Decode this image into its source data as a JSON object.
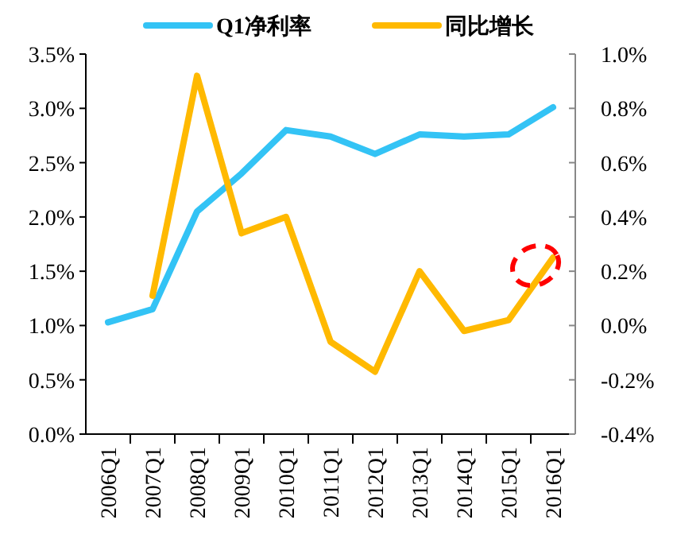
{
  "chart_data": {
    "type": "line",
    "categories": [
      "2006Q1",
      "2007Q1",
      "2008Q1",
      "2009Q1",
      "2010Q1",
      "2011Q1",
      "2012Q1",
      "2013Q1",
      "2014Q1",
      "2015Q1",
      "2016Q1"
    ],
    "series": [
      {
        "name": "Q1净利率",
        "color": "#33c3f5",
        "values": [
          1.03,
          1.15,
          2.05,
          2.4,
          2.8,
          2.74,
          2.58,
          2.76,
          2.74,
          2.76,
          3.01
        ]
      },
      {
        "name": "同比增长",
        "color": "#ffb900",
        "axis": "y2",
        "values": [
          null,
          0.11,
          0.92,
          0.34,
          0.4,
          -0.06,
          -0.17,
          0.2,
          -0.02,
          0.02,
          0.25
        ]
      }
    ],
    "ylim": [
      0,
      3.5
    ],
    "yticks": [
      {
        "value": 0,
        "label": "0.0%"
      },
      {
        "value": 0.5,
        "label": "0.5%"
      },
      {
        "value": 1,
        "label": "1.0%"
      },
      {
        "value": 1.5,
        "label": "1.5%"
      },
      {
        "value": 2,
        "label": "2.0%"
      },
      {
        "value": 2.5,
        "label": "2.5%"
      },
      {
        "value": 3,
        "label": "3.0%"
      },
      {
        "value": 3.5,
        "label": "3.5%"
      }
    ],
    "y2lim": [
      -0.4,
      1.0
    ],
    "y2ticks": [
      {
        "value": -0.4,
        "label": "-0.4%"
      },
      {
        "value": -0.2,
        "label": "-0.2%"
      },
      {
        "value": 0,
        "label": "0.0%"
      },
      {
        "value": 0.2,
        "label": "0.2%"
      },
      {
        "value": 0.4,
        "label": "0.4%"
      },
      {
        "value": 0.6,
        "label": "0.6%"
      },
      {
        "value": 0.8,
        "label": "0.8%"
      },
      {
        "value": 1.0,
        "label": "1.0%"
      }
    ],
    "legend": "top",
    "grid": false,
    "marker": "none",
    "line_style": "solid"
  }
}
